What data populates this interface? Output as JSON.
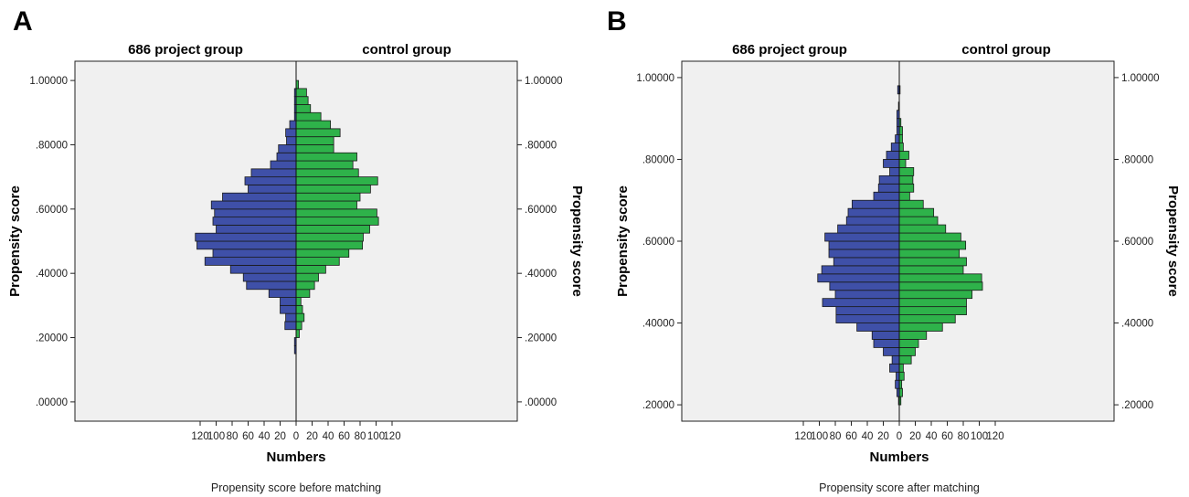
{
  "figure": {
    "colors": {
      "treated": "#3f50a8",
      "control": "#2eb24a",
      "plot_bg": "#f0f0f0",
      "bar_stroke": "#1a1a1a"
    }
  },
  "chart_data": [
    {
      "panel_letter": "A",
      "type": "bar",
      "orientation": "back-to-back horizontal histogram",
      "caption": "Propensity score before matching",
      "left_title": "686 project group",
      "right_title": "control group",
      "xlabel": "Numbers",
      "ylabel_left": "Propensity score",
      "ylabel_right": "Propensity score",
      "x_ticks": [
        "120",
        "100",
        "80",
        "60",
        "40",
        "20",
        "0",
        "20",
        "40",
        "60",
        "80",
        "100",
        "120"
      ],
      "x_tick_values": [
        -120,
        -100,
        -80,
        -60,
        -40,
        -20,
        0,
        20,
        40,
        60,
        80,
        100,
        120
      ],
      "y_ticks": [
        ".00000",
        ".20000",
        ".40000",
        ".60000",
        ".80000",
        "1.00000"
      ],
      "y_tick_values": [
        0.0,
        0.2,
        0.4,
        0.6,
        0.8,
        1.0
      ],
      "xlim": [
        -140,
        140
      ],
      "ylim": [
        -0.06,
        1.06
      ],
      "bin_width": 0.025,
      "bins": [
        0.1625,
        0.1875,
        0.2125,
        0.2375,
        0.2625,
        0.2875,
        0.3125,
        0.3375,
        0.3625,
        0.3875,
        0.4125,
        0.4375,
        0.4625,
        0.4875,
        0.5125,
        0.5375,
        0.5625,
        0.5875,
        0.6125,
        0.6375,
        0.6625,
        0.6875,
        0.7125,
        0.7375,
        0.7625,
        0.7875,
        0.8125,
        0.8375,
        0.8625,
        0.8875,
        0.9125,
        0.9375,
        0.9625,
        0.9875
      ],
      "series": [
        {
          "name": "686 project group",
          "side": "left",
          "values": [
            2,
            2,
            0,
            14,
            13,
            20,
            20,
            34,
            62,
            66,
            82,
            114,
            104,
            124,
            126,
            100,
            104,
            102,
            106,
            92,
            60,
            64,
            56,
            32,
            24,
            22,
            12,
            13,
            8,
            2,
            2,
            2,
            2,
            0
          ]
        },
        {
          "name": "control group",
          "side": "right",
          "values": [
            0,
            0,
            4,
            7,
            10,
            8,
            6,
            17,
            23,
            28,
            37,
            54,
            66,
            83,
            84,
            92,
            103,
            101,
            76,
            80,
            93,
            102,
            78,
            71,
            76,
            47,
            47,
            55,
            43,
            31,
            18,
            15,
            13,
            3
          ]
        }
      ]
    },
    {
      "panel_letter": "B",
      "type": "bar",
      "orientation": "back-to-back horizontal histogram",
      "caption": "Propensity score after matching",
      "left_title": "686 project group",
      "right_title": "control group",
      "xlabel": "Numbers",
      "ylabel_left": "Propensity score",
      "ylabel_right": "Propensity score",
      "x_ticks": [
        "120",
        "100",
        "80",
        "60",
        "40",
        "20",
        "0",
        "20",
        "40",
        "60",
        "80",
        "100",
        "120"
      ],
      "x_tick_values": [
        -120,
        -100,
        -80,
        -60,
        -40,
        -20,
        0,
        20,
        40,
        60,
        80,
        100,
        120
      ],
      "y_ticks": [
        ".20000",
        ".40000",
        ".60000",
        ".80000",
        "1.00000"
      ],
      "y_tick_values": [
        0.2,
        0.4,
        0.6,
        0.8,
        1.0
      ],
      "xlim": [
        -140,
        140
      ],
      "ylim": [
        0.16,
        1.04
      ],
      "bin_width": 0.02,
      "bins": [
        0.21,
        0.23,
        0.25,
        0.27,
        0.29,
        0.31,
        0.33,
        0.35,
        0.37,
        0.39,
        0.41,
        0.43,
        0.45,
        0.47,
        0.49,
        0.51,
        0.53,
        0.55,
        0.57,
        0.59,
        0.61,
        0.63,
        0.65,
        0.67,
        0.69,
        0.71,
        0.73,
        0.75,
        0.77,
        0.79,
        0.81,
        0.83,
        0.85,
        0.87,
        0.89,
        0.91,
        0.93,
        0.95,
        0.97
      ],
      "series": [
        {
          "name": "686 project group",
          "side": "left",
          "values": [
            1,
            3,
            5,
            4,
            12,
            9,
            20,
            32,
            34,
            53,
            79,
            79,
            96,
            80,
            87,
            102,
            97,
            82,
            88,
            88,
            93,
            77,
            66,
            64,
            59,
            32,
            26,
            25,
            12,
            20,
            16,
            10,
            5,
            3,
            3,
            3,
            1,
            0,
            2
          ]
        },
        {
          "name": "control group",
          "side": "right",
          "values": [
            2,
            4,
            3,
            6,
            5,
            15,
            20,
            24,
            34,
            54,
            70,
            84,
            84,
            91,
            104,
            103,
            80,
            84,
            75,
            83,
            77,
            58,
            48,
            43,
            30,
            13,
            18,
            17,
            18,
            8,
            12,
            5,
            4,
            4,
            2,
            0,
            0,
            0,
            1
          ]
        }
      ]
    }
  ]
}
